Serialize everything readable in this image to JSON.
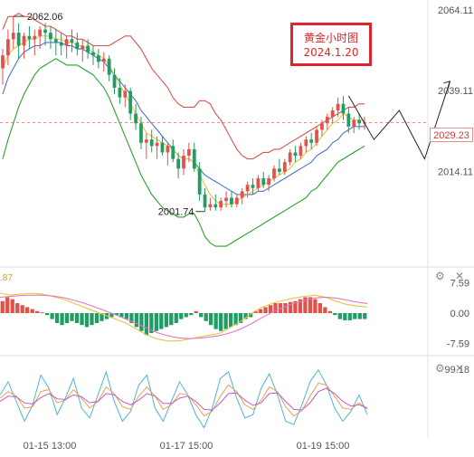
{
  "annotation": {
    "title": "黄金小时图",
    "date": "2024.1.20"
  },
  "chart_data": [
    {
      "type": "candlestick",
      "name": "main",
      "y_ticks": [
        "2064.11",
        "2039.11",
        "2014.11"
      ],
      "current_price": "2029.23",
      "markers": [
        {
          "label": "2062.06",
          "value": 2062.06
        },
        {
          "label": "2001.74",
          "value": 2001.74
        }
      ],
      "ylim": [
        1986,
        2066
      ],
      "ohlc": [
        [
          2046,
          2052,
          2041,
          2050
        ],
        [
          2050,
          2058,
          2047,
          2055
        ],
        [
          2055,
          2062.06,
          2052,
          2057
        ],
        [
          2057,
          2060,
          2049,
          2053
        ],
        [
          2053,
          2057,
          2049,
          2056
        ],
        [
          2056,
          2059,
          2052,
          2055
        ],
        [
          2055,
          2058,
          2050,
          2056
        ],
        [
          2056,
          2059,
          2052,
          2058
        ],
        [
          2058,
          2060,
          2053,
          2057
        ],
        [
          2057,
          2059,
          2052,
          2055
        ],
        [
          2055,
          2058,
          2050,
          2054
        ],
        [
          2054,
          2057,
          2050,
          2053
        ],
        [
          2053,
          2056,
          2049,
          2055
        ],
        [
          2055,
          2058,
          2051,
          2054
        ],
        [
          2054,
          2057,
          2050,
          2052
        ],
        [
          2052,
          2055,
          2048,
          2053
        ],
        [
          2053,
          2055,
          2049,
          2051
        ],
        [
          2051,
          2053,
          2047,
          2050
        ],
        [
          2050,
          2052,
          2046,
          2048
        ],
        [
          2048,
          2051,
          2045,
          2049
        ],
        [
          2049,
          2050,
          2042,
          2044
        ],
        [
          2044,
          2046,
          2038,
          2040
        ],
        [
          2040,
          2043,
          2035,
          2037
        ],
        [
          2037,
          2041,
          2034,
          2039
        ],
        [
          2039,
          2040,
          2030,
          2032
        ],
        [
          2032,
          2035,
          2027,
          2029
        ],
        [
          2029,
          2031,
          2021,
          2023
        ],
        [
          2023,
          2026,
          2018,
          2024
        ],
        [
          2024,
          2027,
          2020,
          2022
        ],
        [
          2022,
          2025,
          2018,
          2023
        ],
        [
          2023,
          2025,
          2019,
          2020
        ],
        [
          2020,
          2023,
          2016,
          2022
        ],
        [
          2022,
          2024,
          2017,
          2018
        ],
        [
          2018,
          2020,
          2012,
          2015
        ],
        [
          2015,
          2021,
          2013,
          2019
        ],
        [
          2019,
          2023,
          2017,
          2021
        ],
        [
          2021,
          2023,
          2014,
          2015
        ],
        [
          2015,
          2017,
          2005,
          2007
        ],
        [
          2007,
          2009,
          2001.74,
          2003
        ],
        [
          2003,
          2006,
          2002,
          2004
        ],
        [
          2004,
          2007,
          2002,
          2003
        ],
        [
          2003,
          2006,
          2002,
          2005
        ],
        [
          2005,
          2008,
          2003,
          2006
        ],
        [
          2006,
          2008,
          2003,
          2004
        ],
        [
          2004,
          2007,
          2003,
          2006
        ],
        [
          2006,
          2009,
          2004,
          2008
        ],
        [
          2008,
          2011,
          2006,
          2010
        ],
        [
          2010,
          2012,
          2007,
          2009
        ],
        [
          2009,
          2013,
          2008,
          2012
        ],
        [
          2012,
          2014,
          2009,
          2010
        ],
        [
          2010,
          2013,
          2008,
          2012
        ],
        [
          2012,
          2016,
          2011,
          2015
        ],
        [
          2015,
          2018,
          2013,
          2014
        ],
        [
          2014,
          2018,
          2013,
          2017
        ],
        [
          2017,
          2021,
          2016,
          2020
        ],
        [
          2020,
          2022,
          2017,
          2019
        ],
        [
          2019,
          2023,
          2018,
          2022
        ],
        [
          2022,
          2025,
          2020,
          2024
        ],
        [
          2024,
          2026,
          2021,
          2023
        ],
        [
          2023,
          2028,
          2022,
          2027
        ],
        [
          2027,
          2030,
          2025,
          2029
        ],
        [
          2029,
          2032,
          2027,
          2031
        ],
        [
          2031,
          2034,
          2029,
          2033
        ],
        [
          2033,
          2037,
          2031,
          2035
        ],
        [
          2035,
          2037.5,
          2030,
          2032
        ],
        [
          2032,
          2034,
          2026,
          2028
        ],
        [
          2028,
          2031,
          2026,
          2030
        ],
        [
          2030,
          2032,
          2027,
          2029
        ],
        [
          2029,
          2031,
          2027,
          2029.23
        ]
      ],
      "overlays": [
        {
          "name": "upper band",
          "color": "#d9534f",
          "values": [
            2058,
            2062,
            2062,
            2063,
            2062,
            2062,
            2061,
            2060,
            2059,
            2059,
            2058,
            2057,
            2056,
            2056,
            2055,
            2055,
            2054,
            2053,
            2053,
            2053,
            2053,
            2054,
            2055,
            2056,
            2056,
            2054,
            2052,
            2049,
            2046,
            2044,
            2042,
            2040,
            2037,
            2035,
            2034,
            2034,
            2034,
            2036,
            2036,
            2035,
            2032,
            2030,
            2027,
            2024,
            2021,
            2019,
            2018,
            2018,
            2019,
            2020,
            2020,
            2021,
            2021,
            2022,
            2023,
            2024,
            2025,
            2026,
            2027,
            2028,
            2029,
            2030,
            2031,
            2032,
            2033,
            2034,
            2034,
            2035,
            2035
          ]
        },
        {
          "name": "lower band",
          "color": "#2ca02c",
          "values": [
            2018,
            2024,
            2029,
            2034,
            2038,
            2041,
            2044,
            2046,
            2047,
            2048,
            2049,
            2048,
            2047,
            2047,
            2047,
            2046,
            2045,
            2044,
            2042,
            2040,
            2037,
            2033,
            2029,
            2025,
            2021,
            2017,
            2013,
            2010,
            2007,
            2005,
            2003,
            2002,
            2001,
            2000,
            2000,
            2001,
            2001,
            1998,
            1994,
            1992,
            1991,
            1991,
            1991,
            1992,
            1993,
            1994,
            1995,
            1996,
            1997,
            1998,
            1999,
            2000,
            2001,
            2002,
            2003,
            2004,
            2005,
            2006,
            2008,
            2009,
            2011,
            2013,
            2015,
            2017,
            2018,
            2019,
            2020,
            2021,
            2022
          ]
        },
        {
          "name": "middle",
          "color": "#4a74c9",
          "values": [
            2038,
            2043,
            2046,
            2049,
            2051,
            2052,
            2053,
            2053,
            2054,
            2054,
            2054,
            2054,
            2053,
            2053,
            2052,
            2052,
            2051,
            2050,
            2049,
            2048,
            2046,
            2044,
            2042,
            2040,
            2038,
            2036,
            2033,
            2031,
            2029,
            2027,
            2025,
            2023,
            2021,
            2019,
            2018,
            2018,
            2017,
            2015,
            2013,
            2012,
            2011,
            2010,
            2009,
            2008,
            2007,
            2007,
            2007,
            2007,
            2008,
            2008,
            2009,
            2010,
            2011,
            2012,
            2013,
            2014,
            2015,
            2016,
            2017,
            2019,
            2020,
            2021,
            2023,
            2024,
            2026,
            2027,
            2028,
            2028,
            2028
          ]
        },
        {
          "name": "fast",
          "color": "#e8c440",
          "values": [
            2046,
            2050,
            2052,
            2053,
            2054,
            2055,
            2055,
            2056,
            2056,
            2056,
            2055,
            2055,
            2054,
            2054,
            2053,
            2053,
            2052,
            2051,
            2050,
            2049,
            2047,
            2044,
            2041,
            2038,
            2035,
            2032,
            2029,
            2026,
            2025,
            2024,
            2023,
            2022,
            2021,
            2019,
            2018,
            2018,
            2017,
            2013,
            2010,
            2007,
            2005,
            2004,
            2004,
            2004,
            2005,
            2006,
            2007,
            2008,
            2009,
            2010,
            2011,
            2012,
            2013,
            2014,
            2015,
            2017,
            2018,
            2020,
            2021,
            2023,
            2025,
            2027,
            2029,
            2030,
            2032,
            2031,
            2030,
            2030,
            2030
          ]
        }
      ],
      "projection": [
        [
          0,
          2037.5
        ],
        [
          5,
          2024
        ],
        [
          10,
          2033
        ],
        [
          15,
          2018
        ],
        [
          20,
          2042
        ]
      ]
    },
    {
      "type": "macd",
      "name": "macd",
      "y_ticks": [
        "7.59",
        "0.00",
        "-7.59"
      ],
      "y_tick_values": [
        7.59,
        0,
        -7.59
      ],
      "left_label": ".87",
      "ylim": [
        -10,
        10
      ],
      "histogram": [
        3,
        4,
        3.5,
        2.5,
        2,
        1.5,
        1,
        0.5,
        0.2,
        -0.5,
        -1.5,
        -2.5,
        -3,
        -2.5,
        -2,
        -2.5,
        -3,
        -3.5,
        -3,
        -2.5,
        -2,
        -1.5,
        -1,
        -0.5,
        -1,
        -1.5,
        -2.5,
        -3.5,
        -4.5,
        -5.5,
        -5,
        -4.5,
        -4,
        -3.5,
        -3,
        -2.5,
        -1.5,
        -1,
        -0.5,
        0.5,
        -1,
        -2,
        -3,
        -4,
        -4.5,
        -4,
        -3.5,
        -3,
        -2.5,
        -1.5,
        -1,
        0.5,
        1,
        1.5,
        2,
        2.5,
        2.5,
        2.5,
        2.8,
        3,
        3.5,
        4,
        4,
        3.5,
        2.5,
        1.5,
        0.5,
        -0.5,
        -1.5,
        -1.8,
        -1.8,
        -1.5,
        -1.5,
        -1.5
      ],
      "lines": [
        {
          "name": "dif",
          "color": "#e8c440",
          "values": [
            5,
            4.5,
            4.8,
            5,
            4.8,
            4.2,
            3.5,
            2.5,
            1.5,
            0.5,
            -0.5,
            -1.5,
            -2.5,
            -4,
            -5.5,
            -6.5,
            -7,
            -7,
            -6.5,
            -6,
            -5.5,
            -5,
            -3.5,
            -2,
            0,
            1.5,
            2.5,
            3.2,
            3.8,
            4.2,
            4.5,
            4,
            3,
            2.2,
            1.8,
            1.5
          ]
        },
        {
          "name": "dea",
          "color": "#e377c2",
          "values": [
            4,
            4.2,
            4.4,
            4.5,
            4.5,
            4.3,
            3.9,
            3.3,
            2.5,
            1.6,
            0.6,
            -0.4,
            -1.5,
            -2.6,
            -3.8,
            -4.9,
            -5.7,
            -6.2,
            -6.4,
            -6.3,
            -6,
            -5.6,
            -4.9,
            -3.9,
            -2.6,
            -1.1,
            0.3,
            1.4,
            2.4,
            3.2,
            3.8,
            4,
            3.8,
            3.3,
            2.8,
            2.4
          ]
        }
      ]
    },
    {
      "type": "line",
      "name": "oscillator",
      "y_ticks": [
        "99.18"
      ],
      "x_ticks": [
        "01-15 13:00",
        "01-17 15:00",
        "01-19 15:00"
      ],
      "ylim": [
        0,
        110
      ],
      "series": [
        {
          "color": "#4fb4d8",
          "values": [
            60,
            80,
            50,
            20,
            45,
            90,
            70,
            30,
            55,
            85,
            40,
            25,
            60,
            95,
            50,
            20,
            35,
            75,
            90,
            40,
            20,
            50,
            80,
            60,
            30,
            10,
            40,
            85,
            95,
            55,
            25,
            30,
            70,
            92,
            60,
            20,
            15,
            45,
            80,
            98,
            75,
            40,
            20,
            35,
            60,
            30
          ]
        },
        {
          "color": "#e3a44f",
          "values": [
            55,
            65,
            58,
            40,
            42,
            65,
            68,
            48,
            52,
            68,
            55,
            40,
            50,
            72,
            62,
            42,
            38,
            58,
            72,
            58,
            38,
            45,
            62,
            60,
            45,
            28,
            35,
            58,
            75,
            65,
            45,
            38,
            52,
            72,
            65,
            42,
            28,
            36,
            58,
            78,
            75,
            58,
            40,
            38,
            48,
            38
          ]
        },
        {
          "color": "#c65ac8",
          "values": [
            50,
            58,
            57,
            48,
            46,
            56,
            62,
            54,
            53,
            60,
            57,
            48,
            50,
            62,
            60,
            50,
            45,
            52,
            62,
            58,
            47,
            47,
            55,
            58,
            50,
            38,
            37,
            48,
            62,
            63,
            52,
            44,
            48,
            62,
            63,
            50,
            38,
            37,
            48,
            65,
            70,
            62,
            50,
            43,
            45,
            40
          ]
        }
      ]
    }
  ]
}
